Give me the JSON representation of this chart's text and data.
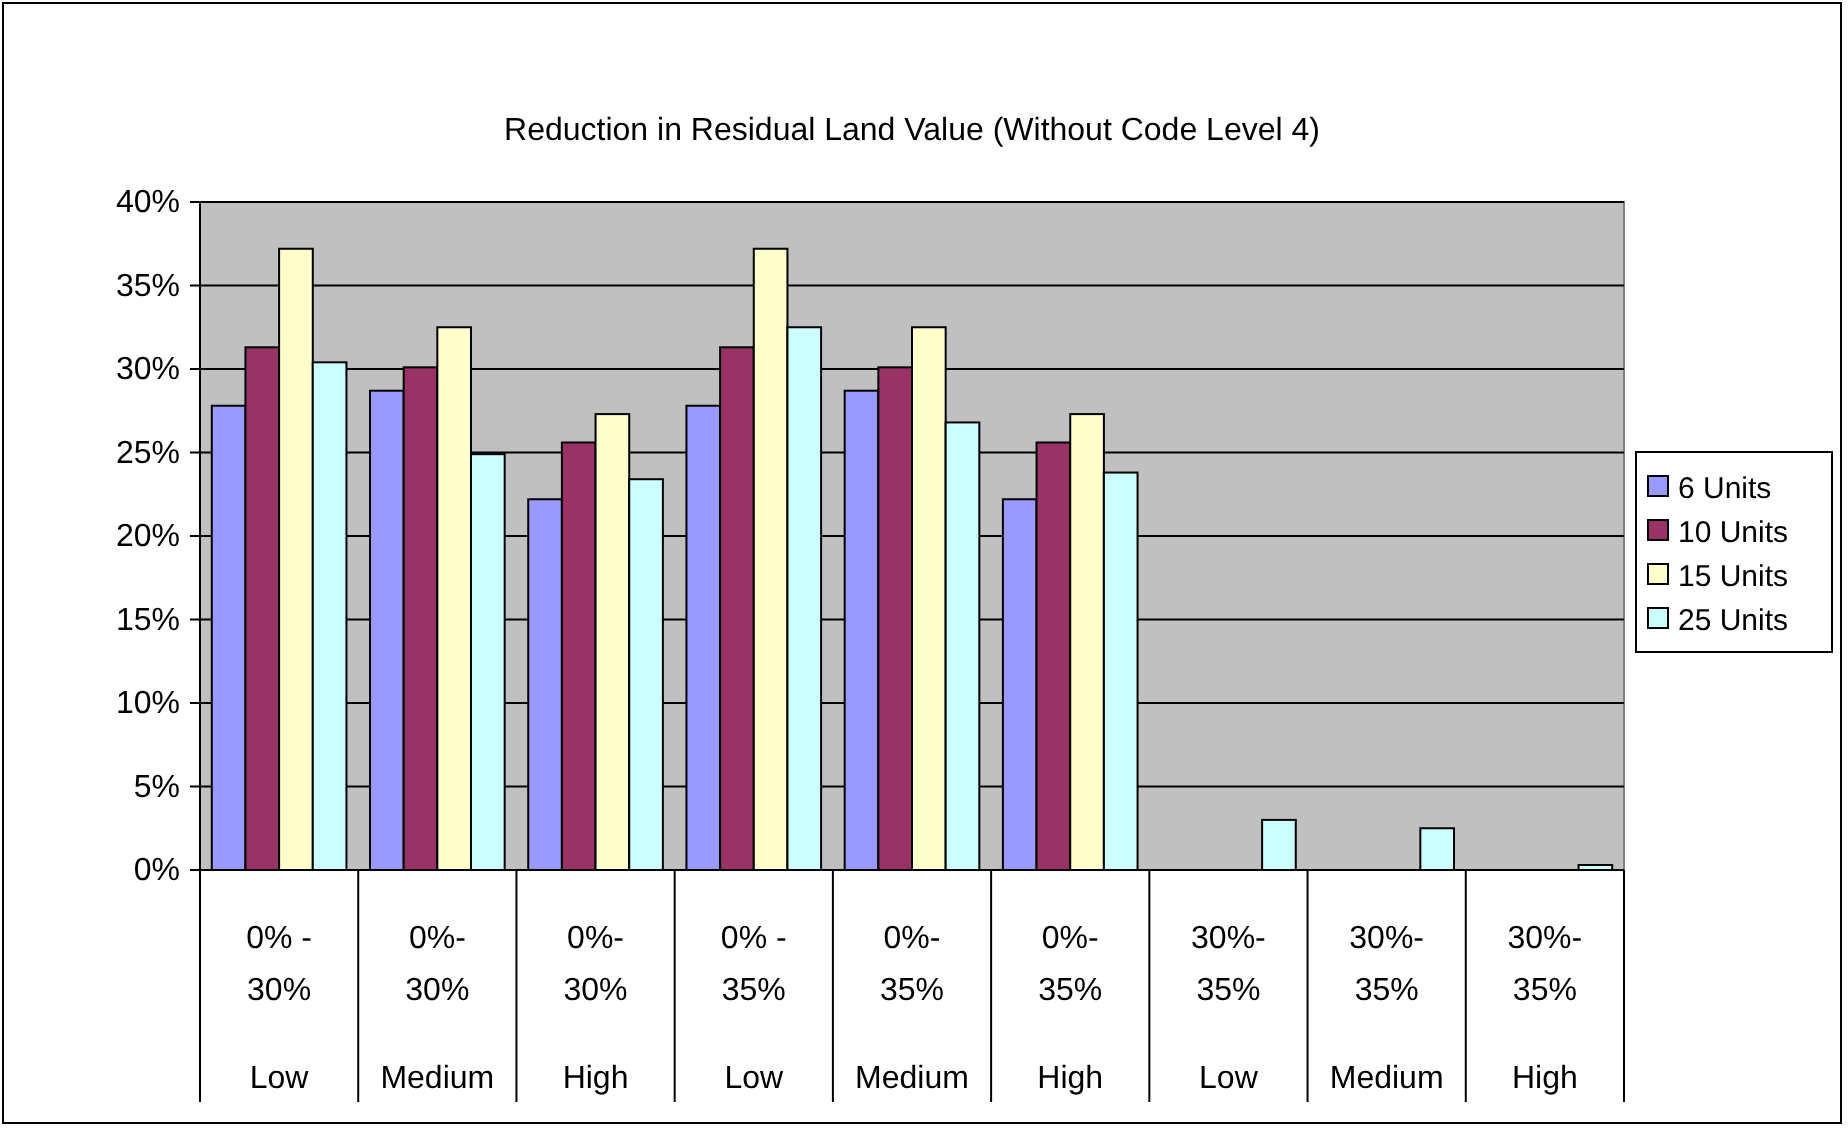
{
  "chart_data": {
    "type": "bar",
    "title": "Reduction in Residual Land Value (Without Code Level 4)",
    "categories": [
      "0% - 30%\nLow",
      "0%-30%\nMedium",
      "0%-30%\nHigh",
      "0% - 35%\nLow",
      "0%-35%\nMedium",
      "0%-35%\nHigh",
      "30%-35%\nLow",
      "30%-35%\nMedium",
      "30%-35%\nHigh"
    ],
    "series": [
      {
        "name": "6 Units",
        "color": "#9999ff",
        "values": [
          27.8,
          28.7,
          22.2,
          27.8,
          28.7,
          22.2,
          0,
          0,
          0
        ]
      },
      {
        "name": "10 Units",
        "color": "#993366",
        "values": [
          31.3,
          30.1,
          25.6,
          31.3,
          30.1,
          25.6,
          0,
          0,
          0
        ]
      },
      {
        "name": "15 Units",
        "color": "#ffffcc",
        "values": [
          37.2,
          32.5,
          27.3,
          37.2,
          32.5,
          27.3,
          0,
          0,
          0
        ]
      },
      {
        "name": "25 Units",
        "color": "#ccffff",
        "values": [
          30.4,
          24.9,
          23.4,
          32.5,
          26.8,
          23.8,
          3.0,
          2.5,
          0.3
        ]
      }
    ],
    "ylim": [
      0,
      40
    ],
    "yticks": [
      {
        "value": 0,
        "label": "0%"
      },
      {
        "value": 5,
        "label": "5%"
      },
      {
        "value": 10,
        "label": "10%"
      },
      {
        "value": 15,
        "label": "15%"
      },
      {
        "value": 20,
        "label": "20%"
      },
      {
        "value": 25,
        "label": "25%"
      },
      {
        "value": 30,
        "label": "30%"
      },
      {
        "value": 35,
        "label": "35%"
      },
      {
        "value": 40,
        "label": "40%"
      }
    ],
    "grid": "y",
    "legend": "right"
  }
}
